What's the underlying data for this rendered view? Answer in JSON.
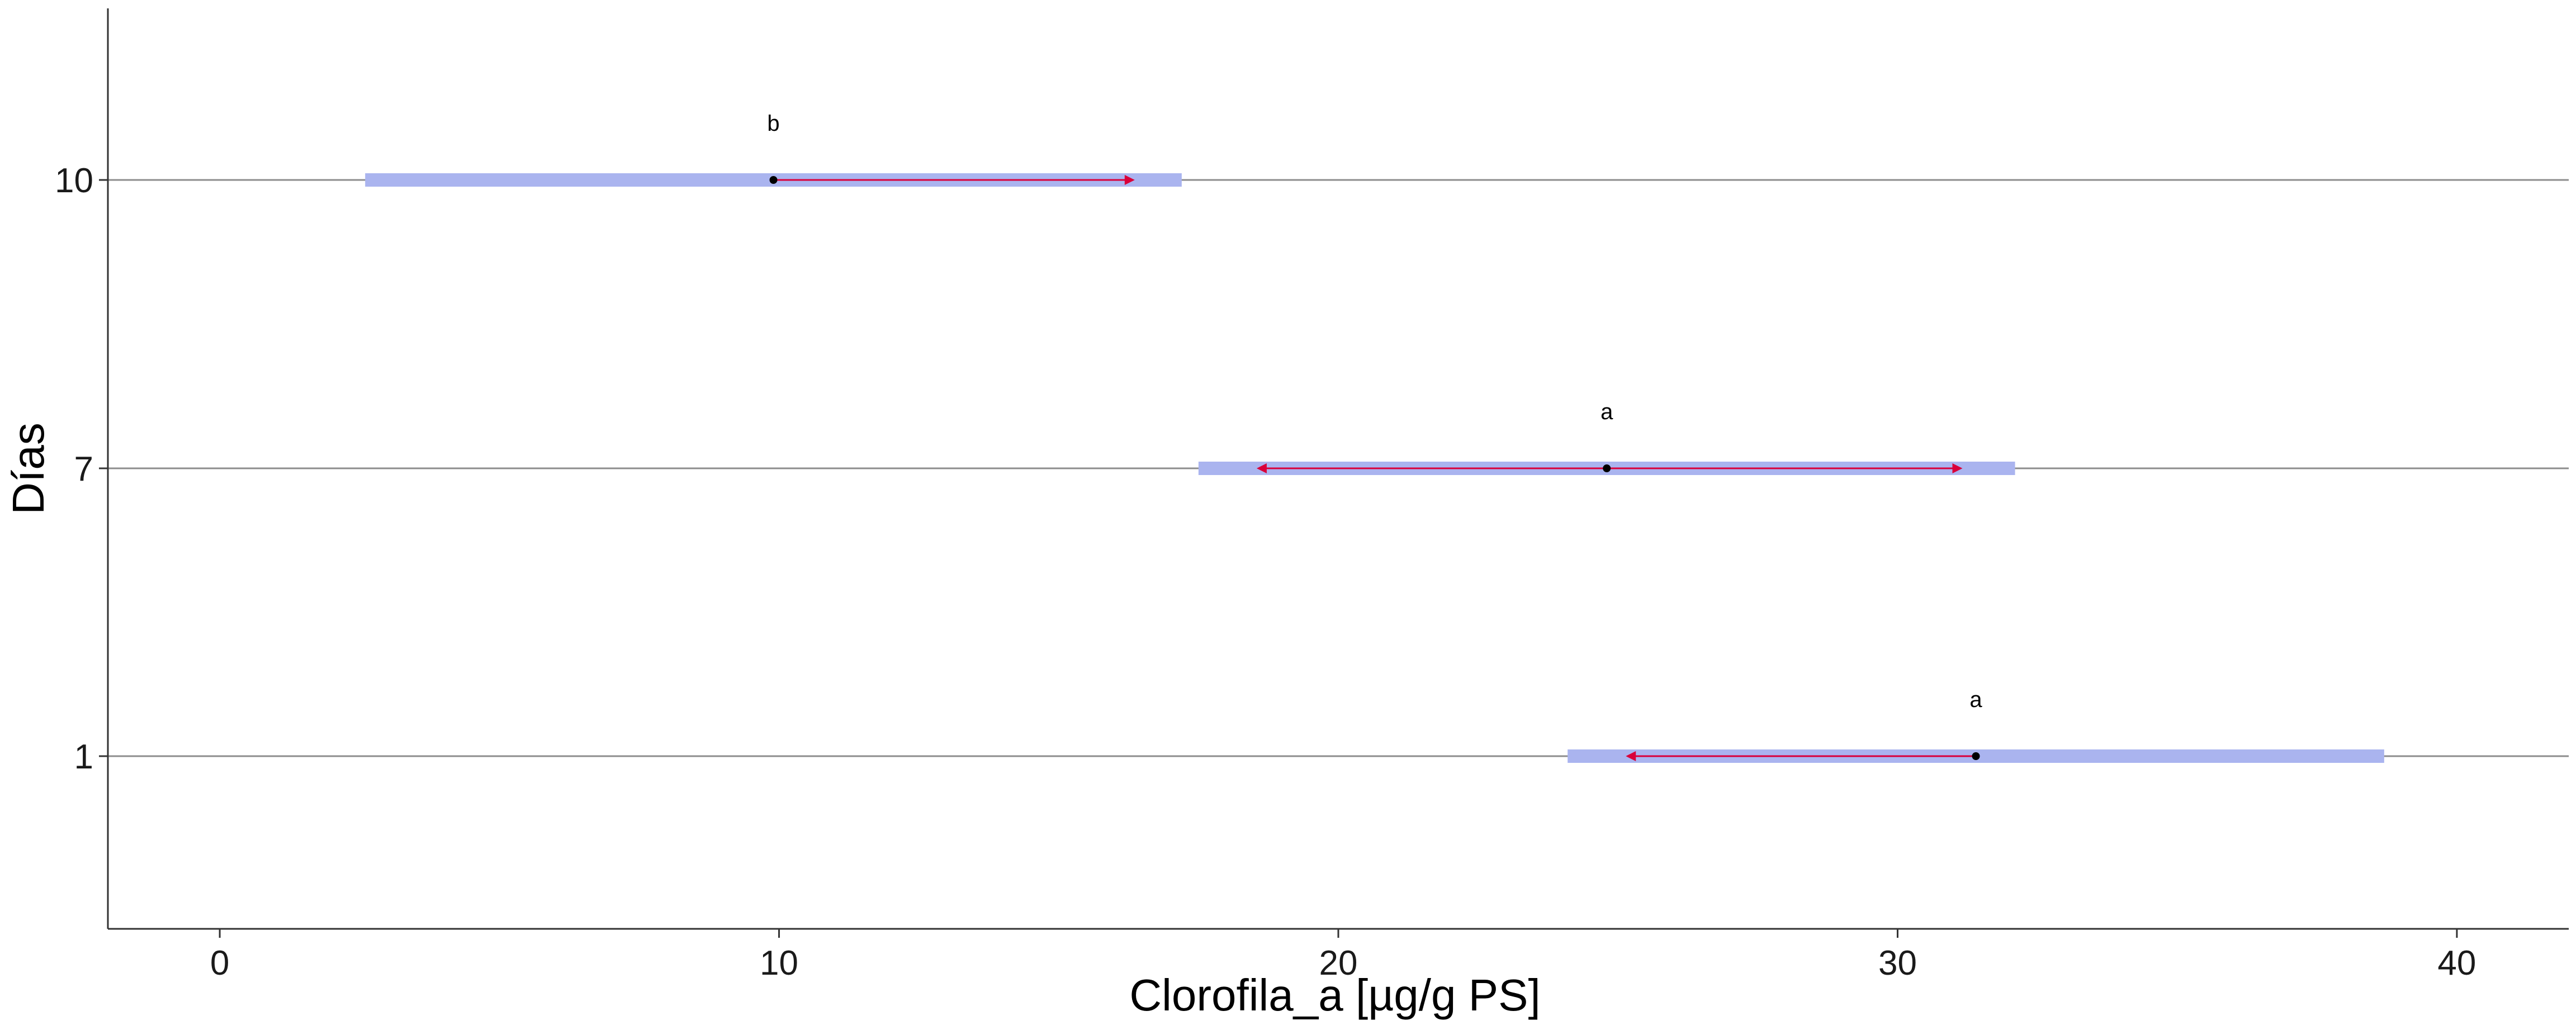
{
  "chart_data": {
    "type": "interval",
    "xlabel": "Clorofila_a [µg/g PS]",
    "ylabel": "Días",
    "xlim": [
      -2,
      42
    ],
    "xticks": [
      0,
      10,
      20,
      30,
      40
    ],
    "yticks": [
      "1",
      "7",
      "10"
    ],
    "grid": "horizontal lines at each category",
    "rows": [
      {
        "day": "10",
        "mean": 9.9,
        "ci_low": 2.6,
        "ci_high": 17.2,
        "arrow_low": 9.9,
        "arrow_high": 16.3,
        "group": "b"
      },
      {
        "day": "7",
        "mean": 24.8,
        "ci_low": 17.5,
        "ci_high": 32.1,
        "arrow_low": 18.6,
        "arrow_high": 31.1,
        "group": "a"
      },
      {
        "day": "1",
        "mean": 31.4,
        "ci_low": 24.1,
        "ci_high": 38.7,
        "arrow_low": 25.2,
        "arrow_high": 31.4,
        "group": "a"
      }
    ],
    "colors": {
      "ci_band": "#aab4ef",
      "arrow": "#d9003a",
      "point": "#000000",
      "gridline": "#8c8c8c",
      "axis": "#333333"
    }
  }
}
